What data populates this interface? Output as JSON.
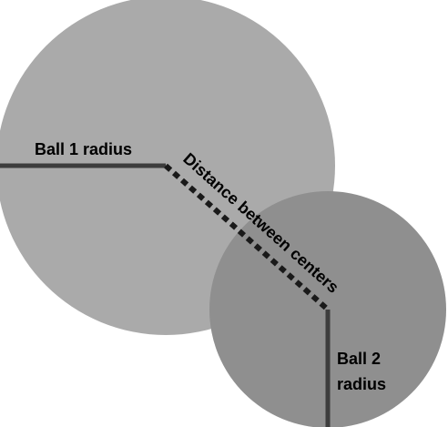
{
  "diagram": {
    "ball1_radius_label": "Ball 1 radius",
    "distance_label": "Distance between centers",
    "ball2_radius_label_line1": "Ball 2",
    "ball2_radius_label_line2": "radius"
  },
  "colors": {
    "ball1_fill": "#aaaaaa",
    "ball2_fill": "#8f8f8f",
    "line": "#3d3d3d",
    "text": "#000000",
    "background": "#ffffff"
  }
}
